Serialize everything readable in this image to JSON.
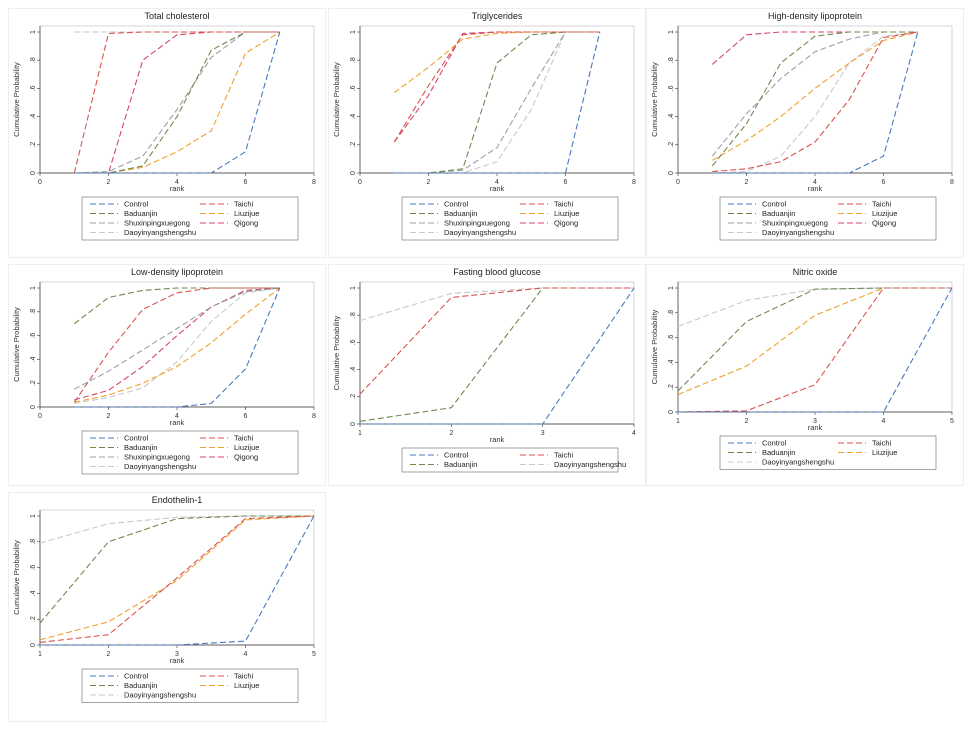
{
  "colors": {
    "Control": "#4a78c0",
    "Taichi": "#d9534f",
    "Baduanjin": "#6d8a4f",
    "Liuzijue": "#f0a030",
    "Shuxinpingxuegong": "#9aa0a6",
    "Qigong": "#d6456a",
    "Daoyinyangshengshu": "#c7c9cc"
  },
  "chart_data": [
    {
      "type": "line",
      "title": "Total cholesterol",
      "xlabel": "rank",
      "ylabel": "Cumulative Probability",
      "xlim": [
        0,
        8
      ],
      "ylim": [
        0,
        1
      ],
      "xticks": [
        "0",
        "2",
        "4",
        "6",
        "8"
      ],
      "yticks": [
        "0",
        ".2",
        ".4",
        ".6",
        ".8",
        "1"
      ],
      "x": [
        1,
        2,
        3,
        4,
        5,
        6,
        7
      ],
      "legend_order": [
        "Control",
        "Taichi",
        "Baduanjin",
        "Liuzijue",
        "Shuxinpingxuegong",
        "Qigong",
        "Daoyinyangshengshu"
      ],
      "series": [
        {
          "name": "Control",
          "values": [
            0,
            0,
            0,
            0,
            0,
            0.15,
            1
          ]
        },
        {
          "name": "Taichi",
          "values": [
            0,
            0.99,
            1,
            1,
            1,
            1,
            1
          ]
        },
        {
          "name": "Baduanjin",
          "values": [
            0,
            0,
            0.05,
            0.4,
            0.87,
            1,
            1
          ]
        },
        {
          "name": "Liuzijue",
          "values": [
            0,
            0,
            0.04,
            0.15,
            0.3,
            0.85,
            1
          ]
        },
        {
          "name": "Shuxinpingxuegong",
          "values": [
            0,
            0.01,
            0.12,
            0.45,
            0.82,
            1,
            1
          ]
        },
        {
          "name": "Qigong",
          "values": [
            0,
            0,
            0.8,
            0.98,
            1,
            1,
            1
          ]
        },
        {
          "name": "Daoyinyangshengshu",
          "values": [
            1,
            1,
            1,
            1,
            1,
            1,
            1
          ]
        }
      ]
    },
    {
      "type": "line",
      "title": "Triglycerides",
      "xlabel": "rank",
      "ylabel": "Cumulative Probability",
      "xlim": [
        0,
        8
      ],
      "ylim": [
        0,
        1
      ],
      "xticks": [
        "0",
        "2",
        "4",
        "6",
        "8"
      ],
      "yticks": [
        "0",
        ".2",
        ".4",
        ".6",
        ".8",
        "1"
      ],
      "x": [
        1,
        2,
        3,
        4,
        5,
        6,
        7
      ],
      "legend_order": [
        "Control",
        "Taichi",
        "Baduanjin",
        "Liuzijue",
        "Shuxinpingxuegong",
        "Qigong",
        "Daoyinyangshengshu"
      ],
      "series": [
        {
          "name": "Control",
          "values": [
            0,
            0,
            0,
            0,
            0,
            0,
            1
          ]
        },
        {
          "name": "Taichi",
          "values": [
            0.22,
            0.62,
            0.98,
            1,
            1,
            1,
            1
          ]
        },
        {
          "name": "Baduanjin",
          "values": [
            0,
            0,
            0.03,
            0.78,
            0.98,
            1,
            1
          ]
        },
        {
          "name": "Liuzijue",
          "values": [
            0.57,
            0.75,
            0.95,
            0.99,
            1,
            1,
            1
          ]
        },
        {
          "name": "Shuxinpingxuegong",
          "values": [
            0,
            0,
            0.02,
            0.18,
            0.6,
            1,
            1
          ]
        },
        {
          "name": "Qigong",
          "values": [
            0.22,
            0.55,
            0.99,
            1,
            1,
            1,
            1
          ]
        },
        {
          "name": "Daoyinyangshengshu",
          "values": [
            0,
            0,
            0,
            0.08,
            0.45,
            1,
            1
          ]
        }
      ]
    },
    {
      "type": "line",
      "title": "High-density lipoprotein",
      "xlabel": "rank",
      "ylabel": "Cumulative Probability",
      "xlim": [
        0,
        8
      ],
      "ylim": [
        0,
        1
      ],
      "xticks": [
        "0",
        "2",
        "4",
        "6",
        "8"
      ],
      "yticks": [
        "0",
        ".2",
        ".4",
        ".6",
        ".8",
        "1"
      ],
      "x": [
        1,
        2,
        3,
        4,
        5,
        6,
        7
      ],
      "legend_order": [
        "Control",
        "Taichi",
        "Baduanjin",
        "Liuzijue",
        "Shuxinpingxuegong",
        "Qigong",
        "Daoyinyangshengshu"
      ],
      "series": [
        {
          "name": "Control",
          "values": [
            0,
            0,
            0,
            0,
            0,
            0.12,
            1
          ]
        },
        {
          "name": "Taichi",
          "values": [
            0.01,
            0.03,
            0.08,
            0.22,
            0.52,
            0.96,
            1
          ]
        },
        {
          "name": "Baduanjin",
          "values": [
            0.05,
            0.35,
            0.78,
            0.97,
            1,
            1,
            1
          ]
        },
        {
          "name": "Liuzijue",
          "values": [
            0.09,
            0.23,
            0.4,
            0.6,
            0.78,
            0.94,
            1
          ]
        },
        {
          "name": "Shuxinpingxuegong",
          "values": [
            0.12,
            0.42,
            0.67,
            0.86,
            0.95,
            1,
            1
          ]
        },
        {
          "name": "Qigong",
          "values": [
            0.77,
            0.98,
            1,
            1,
            1,
            1,
            1
          ]
        },
        {
          "name": "Daoyinyangshengshu",
          "values": [
            0,
            0.01,
            0.12,
            0.4,
            0.78,
            0.97,
            1
          ]
        }
      ]
    },
    {
      "type": "line",
      "title": "Low-density lipoprotein",
      "xlabel": "rank",
      "ylabel": "Cumulative Probability",
      "xlim": [
        0,
        8
      ],
      "ylim": [
        0,
        1
      ],
      "xticks": [
        "0",
        "2",
        "4",
        "6",
        "8"
      ],
      "yticks": [
        "0",
        ".2",
        ".4",
        ".6",
        ".8",
        "1"
      ],
      "x": [
        1,
        2,
        3,
        4,
        5,
        6,
        7
      ],
      "legend_order": [
        "Control",
        "Taichi",
        "Baduanjin",
        "Liuzijue",
        "Shuxinpingxuegong",
        "Qigong",
        "Daoyinyangshengshu"
      ],
      "series": [
        {
          "name": "Control",
          "values": [
            0,
            0,
            0,
            0,
            0.03,
            0.32,
            1
          ]
        },
        {
          "name": "Taichi",
          "values": [
            0.04,
            0.46,
            0.82,
            0.96,
            1,
            1,
            1
          ]
        },
        {
          "name": "Baduanjin",
          "values": [
            0.7,
            0.92,
            0.98,
            1,
            1,
            1,
            1
          ]
        },
        {
          "name": "Liuzijue",
          "values": [
            0.04,
            0.1,
            0.2,
            0.34,
            0.54,
            0.78,
            1
          ]
        },
        {
          "name": "Shuxinpingxuegong",
          "values": [
            0.15,
            0.3,
            0.48,
            0.66,
            0.84,
            0.97,
            1
          ]
        },
        {
          "name": "Qigong",
          "values": [
            0.06,
            0.14,
            0.34,
            0.6,
            0.84,
            0.98,
            1
          ]
        },
        {
          "name": "Daoyinyangshengshu",
          "values": [
            0.03,
            0.08,
            0.16,
            0.38,
            0.72,
            0.96,
            1
          ]
        }
      ]
    },
    {
      "type": "line",
      "title": "Fasting blood glucose",
      "xlabel": "rank",
      "ylabel": "Cumulative Probability",
      "xlim": [
        1,
        4
      ],
      "ylim": [
        0,
        1
      ],
      "xticks": [
        "1",
        "2",
        "3",
        "4"
      ],
      "yticks": [
        "0",
        ".2",
        ".4",
        ".6",
        ".8",
        "1"
      ],
      "x": [
        1,
        2,
        3,
        4
      ],
      "legend_order": [
        "Control",
        "Taichi",
        "Baduanjin",
        "Daoyinyangshengshu"
      ],
      "series": [
        {
          "name": "Control",
          "values": [
            0,
            0,
            0,
            1
          ]
        },
        {
          "name": "Taichi",
          "values": [
            0.22,
            0.93,
            1,
            1
          ]
        },
        {
          "name": "Baduanjin",
          "values": [
            0.02,
            0.12,
            1,
            1
          ]
        },
        {
          "name": "Daoyinyangshengshu",
          "values": [
            0.76,
            0.96,
            1,
            1
          ]
        }
      ]
    },
    {
      "type": "line",
      "title": "Nitric oxide",
      "xlabel": "rank",
      "ylabel": "Cumulative Probability",
      "xlim": [
        1,
        5
      ],
      "ylim": [
        0,
        1
      ],
      "xticks": [
        "1",
        "2",
        "3",
        "4",
        "5"
      ],
      "yticks": [
        "0",
        ".2",
        ".4",
        ".6",
        ".8",
        "1"
      ],
      "x": [
        1,
        2,
        3,
        4,
        5
      ],
      "legend_order": [
        "Control",
        "Taichi",
        "Baduanjin",
        "Liuzijue",
        "Daoyinyangshengshu"
      ],
      "series": [
        {
          "name": "Control",
          "values": [
            0,
            0,
            0,
            0,
            1
          ]
        },
        {
          "name": "Taichi",
          "values": [
            0,
            0.01,
            0.22,
            1,
            1
          ]
        },
        {
          "name": "Baduanjin",
          "values": [
            0.17,
            0.73,
            0.99,
            1,
            1
          ]
        },
        {
          "name": "Liuzijue",
          "values": [
            0.14,
            0.37,
            0.78,
            1,
            1
          ]
        },
        {
          "name": "Daoyinyangshengshu",
          "values": [
            0.69,
            0.9,
            0.99,
            1,
            1
          ]
        }
      ]
    },
    {
      "type": "line",
      "title": "Endothelin-1",
      "xlabel": "rank",
      "ylabel": "Cumulative Probability",
      "xlim": [
        1,
        5
      ],
      "ylim": [
        0,
        1
      ],
      "xticks": [
        "1",
        "2",
        "3",
        "4",
        "5"
      ],
      "yticks": [
        "0",
        ".2",
        ".4",
        ".6",
        ".8",
        "1"
      ],
      "x": [
        1,
        2,
        3,
        4,
        5
      ],
      "legend_order": [
        "Control",
        "Taichi",
        "Baduanjin",
        "Liuzijue",
        "Daoyinyangshengshu"
      ],
      "series": [
        {
          "name": "Control",
          "values": [
            0,
            0,
            0,
            0.03,
            1
          ]
        },
        {
          "name": "Taichi",
          "values": [
            0.02,
            0.08,
            0.52,
            0.98,
            1
          ]
        },
        {
          "name": "Baduanjin",
          "values": [
            0.17,
            0.8,
            0.98,
            1,
            1
          ]
        },
        {
          "name": "Liuzijue",
          "values": [
            0.04,
            0.18,
            0.5,
            0.97,
            1
          ]
        },
        {
          "name": "Daoyinyangshengshu",
          "values": [
            0.79,
            0.94,
            0.99,
            1,
            1
          ]
        }
      ]
    }
  ]
}
